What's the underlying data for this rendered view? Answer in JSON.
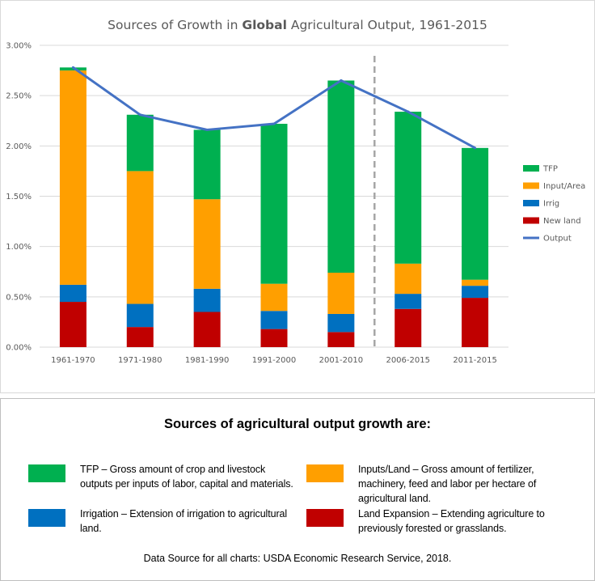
{
  "chart_data": {
    "type": "bar",
    "title_parts": [
      "Sources of Growth in ",
      "Global",
      " Agricultural Output, 1961-2015"
    ],
    "categories": [
      "1961-1970",
      "1971-1980",
      "1981-1990",
      "1991-2000",
      "2001-2010",
      "2006-2015",
      "2011-2015"
    ],
    "ylim": [
      0,
      3.0
    ],
    "yticks": [
      "0.00%",
      "0.50%",
      "1.00%",
      "1.50%",
      "2.00%",
      "2.50%",
      "3.00%"
    ],
    "series": [
      {
        "name": "New land",
        "color": "#c00000",
        "values": [
          0.45,
          0.2,
          0.35,
          0.18,
          0.15,
          0.38,
          0.49
        ]
      },
      {
        "name": "Irrig",
        "color": "#0070c0",
        "values": [
          0.17,
          0.23,
          0.23,
          0.18,
          0.18,
          0.15,
          0.12
        ]
      },
      {
        "name": "Input/Area",
        "color": "#ff9f00",
        "values": [
          2.13,
          1.32,
          0.89,
          0.27,
          0.41,
          0.3,
          0.06
        ]
      },
      {
        "name": "TFP",
        "color": "#00b050",
        "values": [
          0.03,
          0.56,
          0.69,
          1.59,
          1.91,
          1.51,
          1.31
        ]
      }
    ],
    "line_series": {
      "name": "Output",
      "color": "#4472c4",
      "values": [
        2.78,
        2.31,
        2.16,
        2.22,
        2.65,
        2.34,
        1.98
      ]
    },
    "legend_order": [
      "TFP",
      "Input/Area",
      "Irrig",
      "New land",
      "Output"
    ],
    "legend_position": "right",
    "separator_after_category": "2001-2010",
    "grid": true
  },
  "description": {
    "heading": "Sources of agricultural output growth are:",
    "items": [
      {
        "key": "tfp",
        "color": "#00b050",
        "text": "TFP – Gross amount of crop and livestock outputs per inputs of labor, capital and materials."
      },
      {
        "key": "inputs",
        "color": "#ff9f00",
        "text": "Inputs/Land – Gross amount of fertilizer, machinery, feed and labor per hectare of agricultural land."
      },
      {
        "key": "irrigation",
        "color": "#0070c0",
        "text": "Irrigation – Extension of irrigation to agricultural land."
      },
      {
        "key": "land",
        "color": "#c00000",
        "text": "Land Expansion – Extending agriculture to previously forested or grasslands."
      }
    ],
    "source": "Data Source for all charts: USDA Economic Research Service, 2018."
  }
}
